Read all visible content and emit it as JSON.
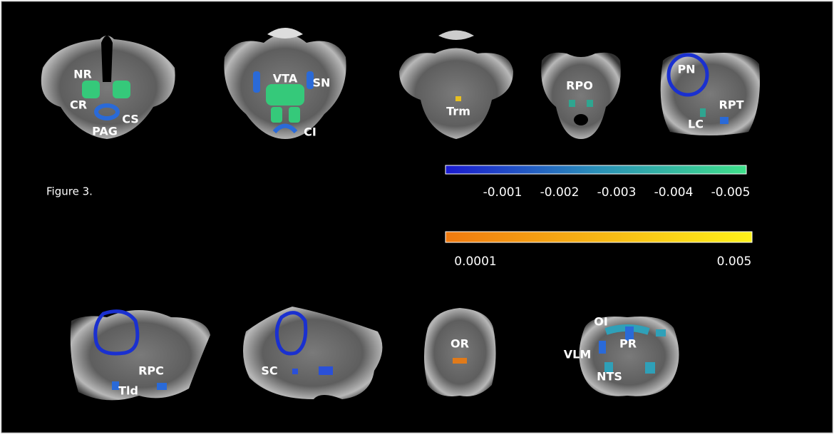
{
  "caption": "Figure 3.",
  "slices": [
    {
      "labels": [
        "NR",
        "CR",
        "CS",
        "PAG"
      ]
    },
    {
      "labels": [
        "VTA",
        "SN",
        "CI"
      ]
    },
    {
      "labels": [
        "Trm"
      ]
    },
    {
      "labels": [
        "RPO"
      ]
    },
    {
      "labels": [
        "PN",
        "RPT",
        "LC"
      ]
    },
    {
      "labels": [
        "RPC",
        "Tld"
      ]
    },
    {
      "labels": [
        "SC"
      ]
    },
    {
      "labels": [
        "OR"
      ]
    },
    {
      "labels": [
        "OI",
        "PR",
        "VLM",
        "NTS"
      ]
    }
  ],
  "colorbars": [
    {
      "ticks": [
        "-0.001",
        "-0.002",
        "-0.003",
        "-0.004",
        "-0.005"
      ]
    },
    {
      "ticks": [
        "0.0001",
        "0.005"
      ]
    }
  ]
}
